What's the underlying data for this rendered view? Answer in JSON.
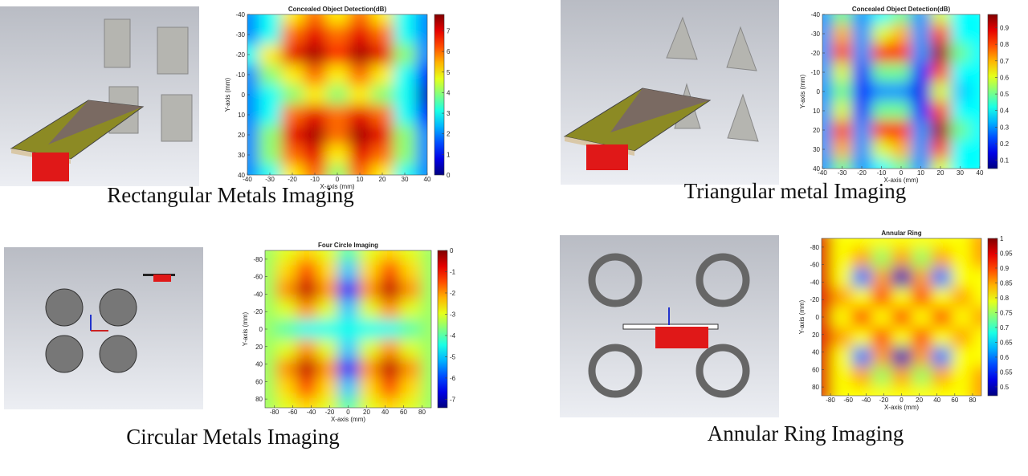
{
  "chart_data": [
    {
      "type": "heatmap",
      "title": "Concealed Object Detection(dB)",
      "xlabel": "X-axis (mm)",
      "ylabel": "Y-axis (mm)",
      "caption": "Rectangular Metals Imaging",
      "xlim": [
        -40,
        40
      ],
      "ylim": [
        -40,
        40
      ],
      "y_reversed": true,
      "xticks": [
        -40,
        -30,
        -20,
        -10,
        0,
        10,
        20,
        30,
        40
      ],
      "yticks": [
        -40,
        -30,
        -20,
        -10,
        0,
        10,
        20,
        30,
        40
      ],
      "colormap": "jet",
      "zlim": [
        0,
        7.8
      ],
      "zticks": [
        0,
        1,
        2,
        3,
        4,
        5,
        6,
        7
      ],
      "z": [
        [
          2,
          3,
          5,
          6,
          5,
          6,
          5,
          3,
          2
        ],
        [
          2,
          3,
          6,
          7,
          6,
          7,
          6,
          3,
          2
        ],
        [
          3,
          5,
          7,
          7.5,
          6.5,
          7.5,
          7,
          4,
          2
        ],
        [
          2,
          4,
          5,
          6,
          5,
          6,
          5,
          3,
          1
        ],
        [
          2,
          3,
          4,
          5,
          4,
          5,
          4,
          3,
          0.5
        ],
        [
          2,
          3,
          6,
          7,
          6,
          7,
          6,
          3,
          1
        ],
        [
          2,
          4,
          7,
          7.5,
          6,
          7.5,
          7,
          4,
          2
        ],
        [
          2,
          4,
          6,
          7,
          5,
          7,
          6,
          4,
          2
        ],
        [
          2,
          3,
          5,
          6,
          4,
          6,
          5,
          3,
          2
        ]
      ]
    },
    {
      "type": "heatmap",
      "title": "Concealed Object Detection(dB)",
      "xlabel": "X-axis (mm)",
      "ylabel": "Y-axis (mm)",
      "caption": "Triangular metal Imaging",
      "xlim": [
        -40,
        40
      ],
      "ylim": [
        -40,
        40
      ],
      "y_reversed": true,
      "xticks": [
        -40,
        -30,
        -20,
        -10,
        0,
        10,
        20,
        30,
        40
      ],
      "yticks": [
        -40,
        -30,
        -20,
        -10,
        0,
        10,
        20,
        30,
        40
      ],
      "colormap": "jet",
      "zlim": [
        0.05,
        0.98
      ],
      "zticks": [
        0.1,
        0.2,
        0.3,
        0.4,
        0.5,
        0.6,
        0.7,
        0.8,
        0.9
      ],
      "z": [
        [
          0.3,
          0.5,
          0.3,
          0.4,
          0.5,
          0.3,
          0.6,
          0.4,
          0.4
        ],
        [
          0.3,
          0.7,
          0.3,
          0.6,
          0.7,
          0.3,
          0.8,
          0.4,
          0.4
        ],
        [
          0.3,
          0.8,
          0.3,
          0.85,
          0.85,
          0.3,
          0.95,
          0.5,
          0.4
        ],
        [
          0.3,
          0.6,
          0.2,
          0.5,
          0.5,
          0.2,
          0.8,
          0.4,
          0.4
        ],
        [
          0.3,
          0.5,
          0.2,
          0.3,
          0.3,
          0.15,
          0.6,
          0.35,
          0.4
        ],
        [
          0.3,
          0.6,
          0.2,
          0.5,
          0.5,
          0.2,
          0.8,
          0.4,
          0.4
        ],
        [
          0.3,
          0.8,
          0.3,
          0.85,
          0.85,
          0.3,
          0.95,
          0.5,
          0.4
        ],
        [
          0.3,
          0.7,
          0.3,
          0.6,
          0.7,
          0.3,
          0.8,
          0.4,
          0.4
        ],
        [
          0.3,
          0.5,
          0.3,
          0.4,
          0.5,
          0.3,
          0.6,
          0.4,
          0.4
        ]
      ]
    },
    {
      "type": "heatmap",
      "title": "Four Circle Imaging",
      "xlabel": "X-axis (mm)",
      "ylabel": "Y-axis (mm)",
      "caption": "Circular Metals Imaging",
      "xlim": [
        -90,
        90
      ],
      "ylim": [
        -90,
        90
      ],
      "y_reversed": true,
      "xticks": [
        -80,
        -60,
        -40,
        -20,
        0,
        20,
        40,
        60,
        80
      ],
      "yticks": [
        -80,
        -60,
        -40,
        -20,
        0,
        20,
        40,
        60,
        80
      ],
      "colormap": "jet",
      "zlim": [
        -7.4,
        0
      ],
      "zticks": [
        0,
        -1,
        -2,
        -3,
        -4,
        -5,
        -6,
        -7
      ],
      "z": [
        [
          -3.5,
          -3,
          -2.5,
          -3,
          -4,
          -3,
          -2.5,
          -3,
          -3.5
        ],
        [
          -3.5,
          -2.5,
          -1.5,
          -2.5,
          -5,
          -2.5,
          -1.5,
          -2.5,
          -3.5
        ],
        [
          -3.5,
          -2,
          -0.5,
          -2,
          -6.5,
          -2,
          -0.5,
          -2,
          -3.5
        ],
        [
          -3.5,
          -3,
          -2,
          -3,
          -5,
          -3,
          -2,
          -3,
          -3.5
        ],
        [
          -3.5,
          -4,
          -4.5,
          -4.5,
          -4.5,
          -4.5,
          -4.5,
          -4,
          -3.5
        ],
        [
          -3.5,
          -3,
          -2,
          -3,
          -5,
          -3,
          -2,
          -3,
          -3.5
        ],
        [
          -3.5,
          -2,
          -0.5,
          -2,
          -6.5,
          -2,
          -0.5,
          -2,
          -3.5
        ],
        [
          -3.5,
          -2.5,
          -1.5,
          -2.5,
          -5,
          -2.5,
          -1.5,
          -2.5,
          -3.5
        ],
        [
          -3.5,
          -3,
          -2.5,
          -3,
          -4,
          -3,
          -2.5,
          -3,
          -3.5
        ]
      ]
    },
    {
      "type": "heatmap",
      "title": "Annular Ring",
      "xlabel": "X-axis (mm)",
      "ylabel": "Y-axis (mm)",
      "caption": "Annular Ring Imaging",
      "xlim": [
        -90,
        90
      ],
      "ylim": [
        -90,
        90
      ],
      "y_reversed": true,
      "xticks": [
        -80,
        -60,
        -40,
        -20,
        0,
        20,
        40,
        60,
        80
      ],
      "yticks": [
        -80,
        -60,
        -40,
        -20,
        0,
        20,
        40,
        60,
        80
      ],
      "colormap": "jet",
      "zlim": [
        0.47,
        1
      ],
      "zticks": [
        0.5,
        0.55,
        0.6,
        0.65,
        0.7,
        0.75,
        0.8,
        0.85,
        0.9,
        0.95,
        1
      ],
      "z": [
        [
          0.95,
          0.8,
          0.8,
          0.8,
          0.8,
          0.8,
          0.8,
          0.8,
          0.85
        ],
        [
          0.95,
          0.8,
          0.85,
          0.75,
          0.85,
          0.75,
          0.85,
          0.8,
          0.85
        ],
        [
          0.95,
          0.8,
          0.6,
          0.85,
          0.5,
          0.85,
          0.6,
          0.8,
          0.8
        ],
        [
          0.95,
          0.85,
          0.8,
          0.9,
          0.8,
          0.9,
          0.8,
          0.85,
          0.8
        ],
        [
          0.95,
          0.8,
          0.9,
          0.8,
          0.9,
          0.8,
          0.9,
          0.8,
          0.85
        ],
        [
          0.95,
          0.85,
          0.8,
          0.9,
          0.8,
          0.9,
          0.8,
          0.85,
          0.8
        ],
        [
          0.95,
          0.8,
          0.6,
          0.85,
          0.5,
          0.85,
          0.6,
          0.8,
          0.8
        ],
        [
          0.95,
          0.8,
          0.85,
          0.75,
          0.85,
          0.75,
          0.85,
          0.8,
          0.85
        ],
        [
          0.95,
          0.8,
          0.8,
          0.8,
          0.8,
          0.8,
          0.8,
          0.8,
          0.85
        ]
      ]
    }
  ]
}
